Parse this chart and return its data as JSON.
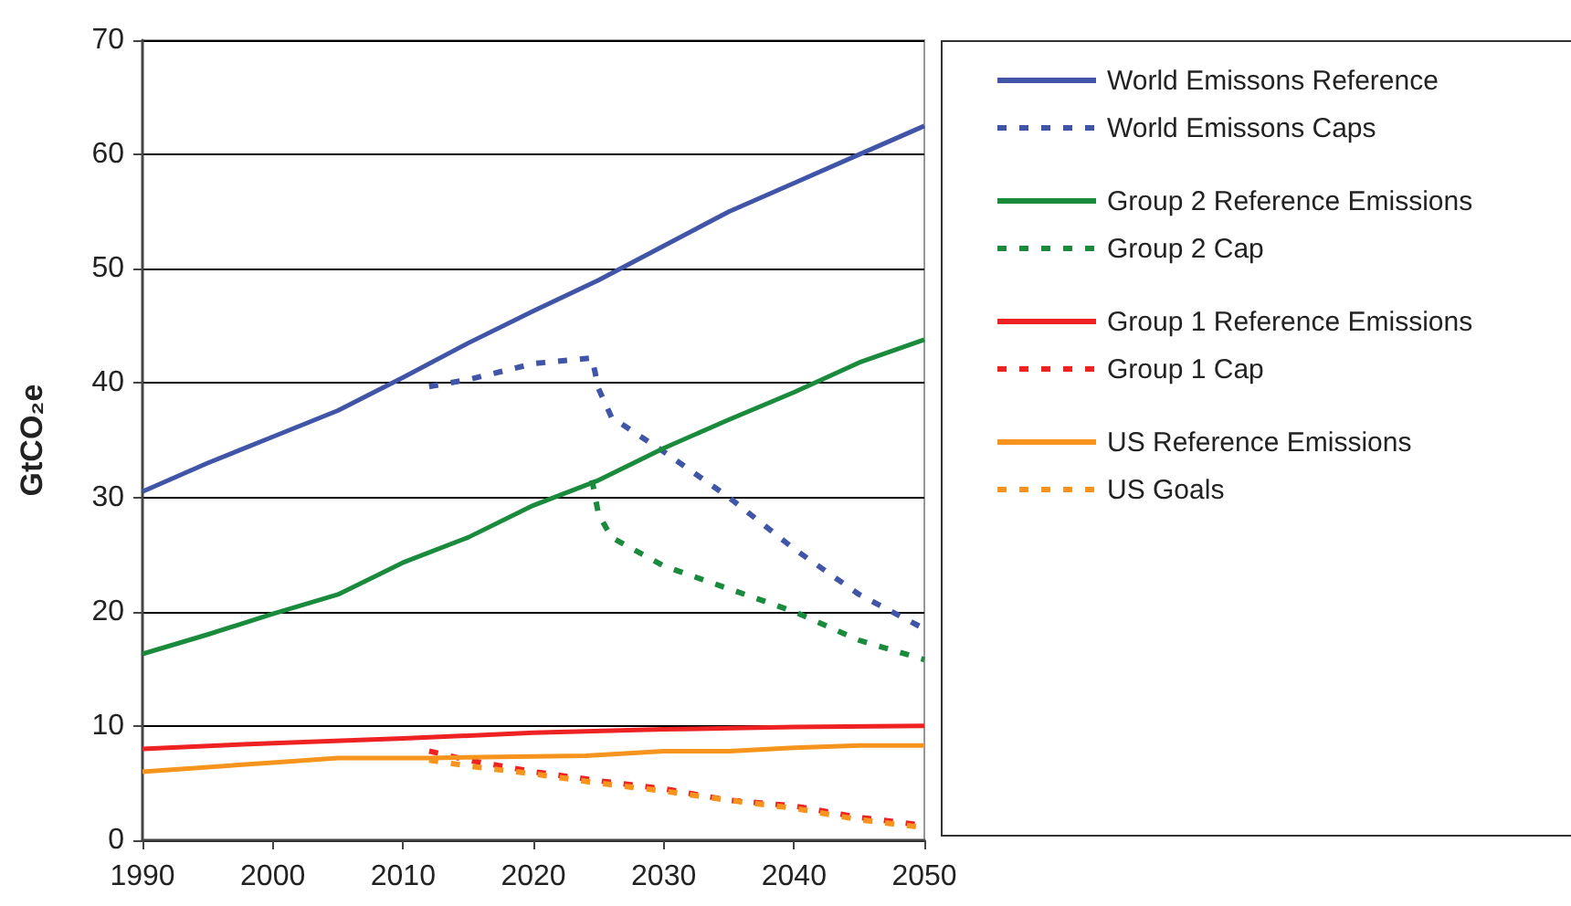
{
  "chart_data": {
    "type": "line",
    "ylabel": "GtCO₂e",
    "xlim": [
      1990,
      2050
    ],
    "xticks": [
      1990,
      2000,
      2010,
      2020,
      2030,
      2040,
      2050
    ],
    "ylim": [
      0,
      70
    ],
    "yticks": [
      0,
      10,
      20,
      30,
      40,
      50,
      60,
      70
    ],
    "grid": "y",
    "legend": "right",
    "marker": "none",
    "series": [
      {
        "name": "World Emissons Reference",
        "color": "#4055a8",
        "line_style": "solid",
        "x": [
          1990,
          1995,
          2000,
          2005,
          2010,
          2015,
          2020,
          2025,
          2030,
          2035,
          2040,
          2045,
          2050
        ],
        "values": [
          30.5,
          33,
          35.3,
          37.6,
          40.5,
          43.5,
          46.3,
          49,
          52,
          55,
          57.5,
          60,
          62.5
        ]
      },
      {
        "name": "World Emissons Caps",
        "color": "#4055a8",
        "line_style": "dashed",
        "x": [
          2012,
          2015,
          2020,
          2024.5,
          2025,
          2026,
          2030,
          2035,
          2040,
          2045,
          2050
        ],
        "values": [
          39.7,
          40.3,
          41.7,
          42.2,
          39.5,
          37,
          34,
          30,
          25.5,
          21.5,
          18.5
        ]
      },
      {
        "name": "Group 2 Reference Emissions",
        "color": "#1a8a3c",
        "line_style": "solid",
        "x": [
          1990,
          1995,
          2000,
          2005,
          2010,
          2015,
          2020,
          2025,
          2030,
          2035,
          2040,
          2045,
          2050
        ],
        "values": [
          16.3,
          18,
          19.8,
          21.5,
          24.3,
          26.5,
          29.3,
          31.5,
          34.3,
          36.8,
          39.2,
          41.8,
          43.8
        ]
      },
      {
        "name": "Group 2 Cap",
        "color": "#1a8a3c",
        "line_style": "dashed",
        "x": [
          2024.5,
          2025,
          2026,
          2030,
          2035,
          2040,
          2045,
          2050
        ],
        "values": [
          31.5,
          28.5,
          26.5,
          24,
          22,
          20,
          17.5,
          15.8
        ]
      },
      {
        "name": "Group 1 Reference Emissions",
        "color": "#ee2222",
        "line_style": "solid",
        "x": [
          1990,
          2000,
          2010,
          2020,
          2030,
          2040,
          2050
        ],
        "values": [
          8,
          8.5,
          8.9,
          9.4,
          9.7,
          9.9,
          10
        ]
      },
      {
        "name": "Group 1 Cap",
        "color": "#ee2222",
        "line_style": "dashed",
        "x": [
          2012,
          2015,
          2020,
          2025,
          2030,
          2035,
          2040,
          2045,
          2050
        ],
        "values": [
          7.8,
          7,
          6,
          5.2,
          4.5,
          3.5,
          3,
          2,
          1.3
        ]
      },
      {
        "name": "US Reference Emissions",
        "color": "#f7941d",
        "line_style": "solid",
        "x": [
          1990,
          2000,
          2005,
          2012,
          2024,
          2030,
          2035,
          2040,
          2045,
          2050
        ],
        "values": [
          6,
          6.8,
          7.2,
          7.2,
          7.4,
          7.8,
          7.8,
          8.1,
          8.3,
          8.3
        ]
      },
      {
        "name": "US Goals",
        "color": "#f7941d",
        "line_style": "dashed",
        "x": [
          2012,
          2015,
          2020,
          2025,
          2030,
          2035,
          2040,
          2045,
          2050
        ],
        "values": [
          7,
          6.5,
          5.8,
          5,
          4.3,
          3.5,
          2.8,
          1.8,
          1.1
        ]
      }
    ]
  }
}
